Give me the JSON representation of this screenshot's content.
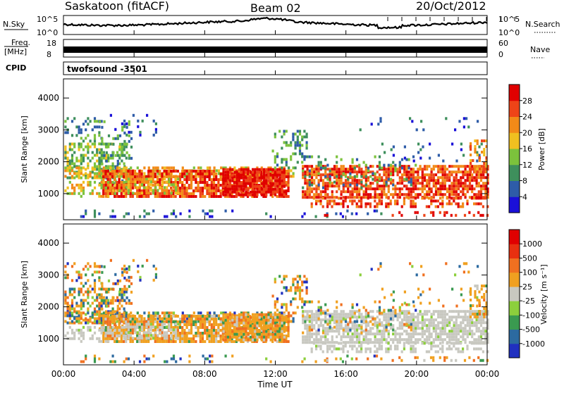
{
  "header": {
    "station": "Saskatoon (fitACF)",
    "beam": "Beam 02",
    "date": "20/Oct/2012"
  },
  "noise_panel": {
    "left_label": "N.Sky",
    "left_ticks": [
      "10^5",
      "10^0"
    ],
    "right_label": "N.Search",
    "right_ticks": [
      "10^5",
      "10^0"
    ]
  },
  "freq_panel": {
    "left_label_top": "Freq.",
    "left_label_unit": "[MHz]",
    "left_ticks": [
      "18",
      "8"
    ],
    "right_label": "Nave",
    "right_ticks": [
      "60",
      "0"
    ]
  },
  "cpid_panel": {
    "label": "CPID",
    "value": "twofsound -3501"
  },
  "chart_data": [
    {
      "type": "heatmap",
      "panel": "power",
      "ylabel": "Slant Range [km]",
      "yticks": [
        1000,
        2000,
        3000,
        4000
      ],
      "ylim": [
        180,
        4600
      ],
      "colorbar_label": "Power [dB]",
      "colorbar_ticks": [
        "28",
        "24",
        "20",
        "16",
        "12",
        "8",
        "4"
      ],
      "colors": [
        "#1a10d8",
        "#2e5ca8",
        "#3e8f5c",
        "#7cc23c",
        "#f0c020",
        "#f28a18",
        "#ee4418",
        "#e00000"
      ]
    },
    {
      "type": "heatmap",
      "panel": "velocity",
      "ylabel": "Slant Range [km]",
      "yticks": [
        1000,
        2000,
        3000,
        4000
      ],
      "ylim": [
        180,
        4600
      ],
      "colorbar_label": "Velocity [m s⁻¹]",
      "colorbar_ticks": [
        "1000",
        "500",
        "100",
        "25",
        "-25",
        "-100",
        "-500",
        "-1000"
      ],
      "colors": [
        "#2030c0",
        "#2c6aa0",
        "#3a9a50",
        "#8ccf3c",
        "#c8c8c0",
        "#f0a020",
        "#f07020",
        "#e83010",
        "#e00000"
      ]
    }
  ],
  "x_axis": {
    "ticks": [
      "00:00",
      "04:00",
      "08:00",
      "12:00",
      "16:00",
      "20:00",
      "00:00"
    ],
    "label": "Time UT",
    "range_hours": [
      0,
      24
    ]
  }
}
